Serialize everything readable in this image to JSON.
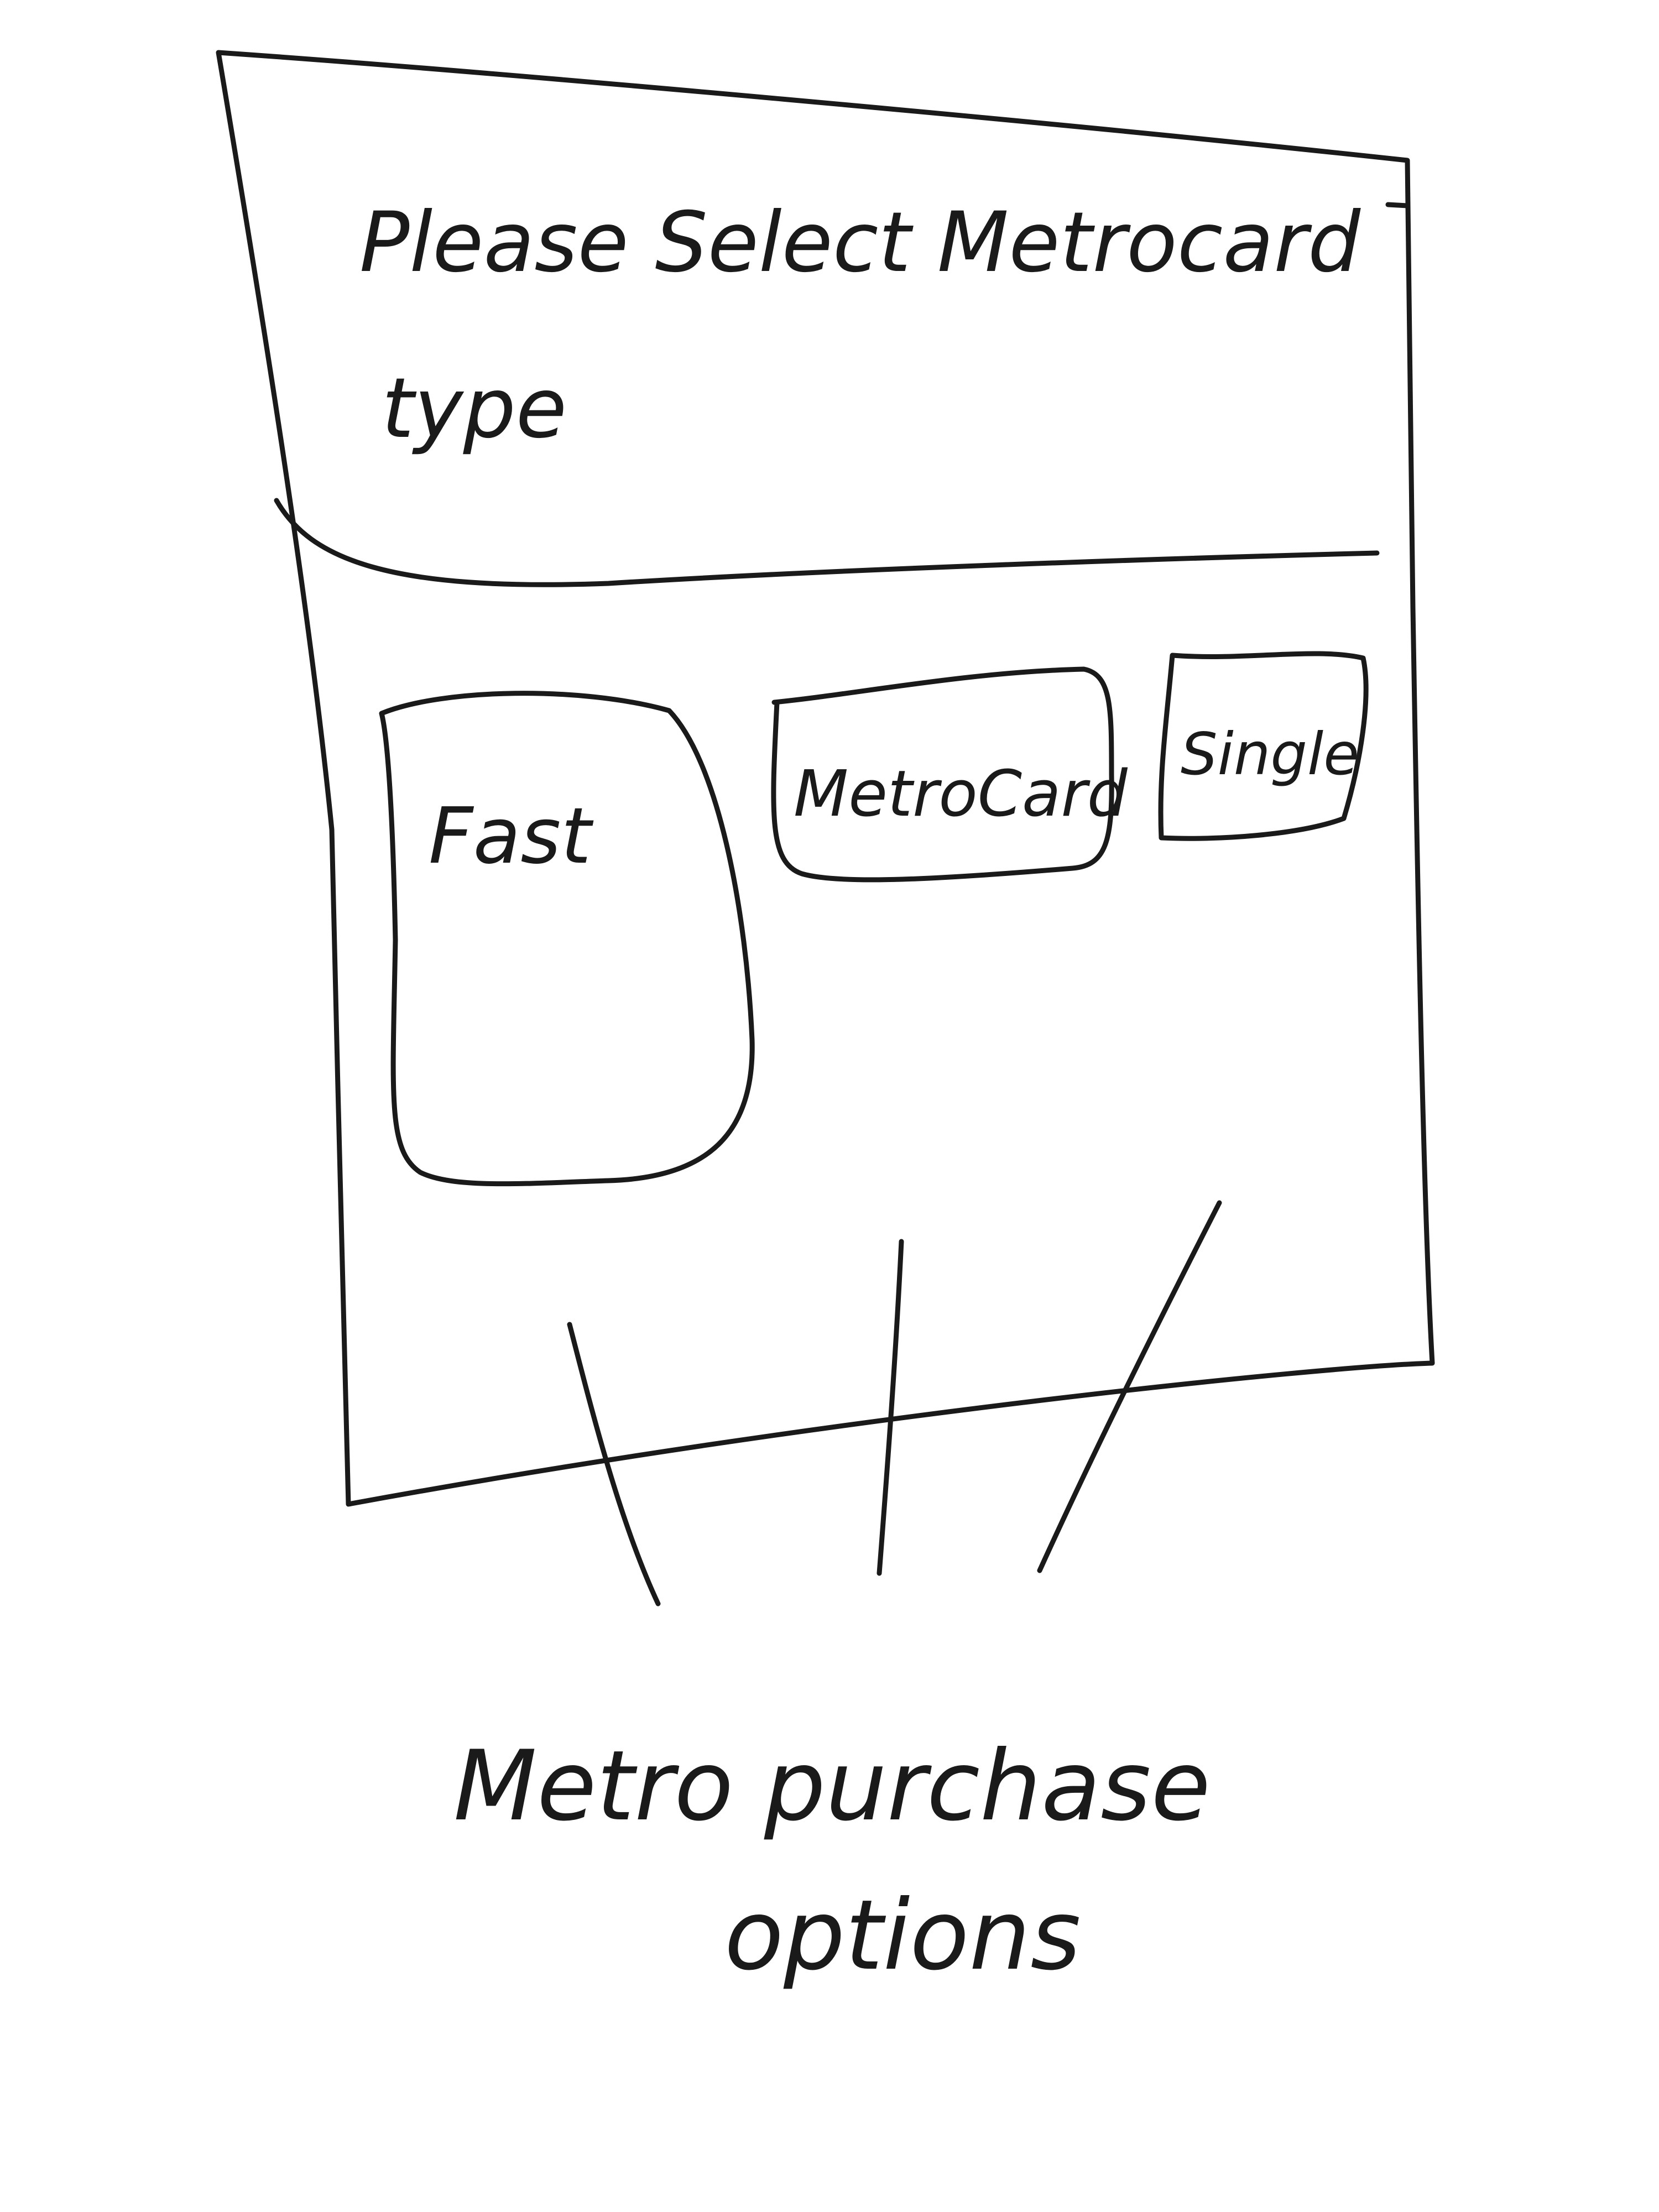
{
  "screen": {
    "prompt_line1": "Please Select Metrocard",
    "prompt_line2": "type"
  },
  "options": [
    {
      "label": "Fast"
    },
    {
      "label": "MetroCard"
    },
    {
      "label": "Single"
    }
  ],
  "annotation": {
    "line1": "Metro purchase",
    "line2": "options"
  }
}
